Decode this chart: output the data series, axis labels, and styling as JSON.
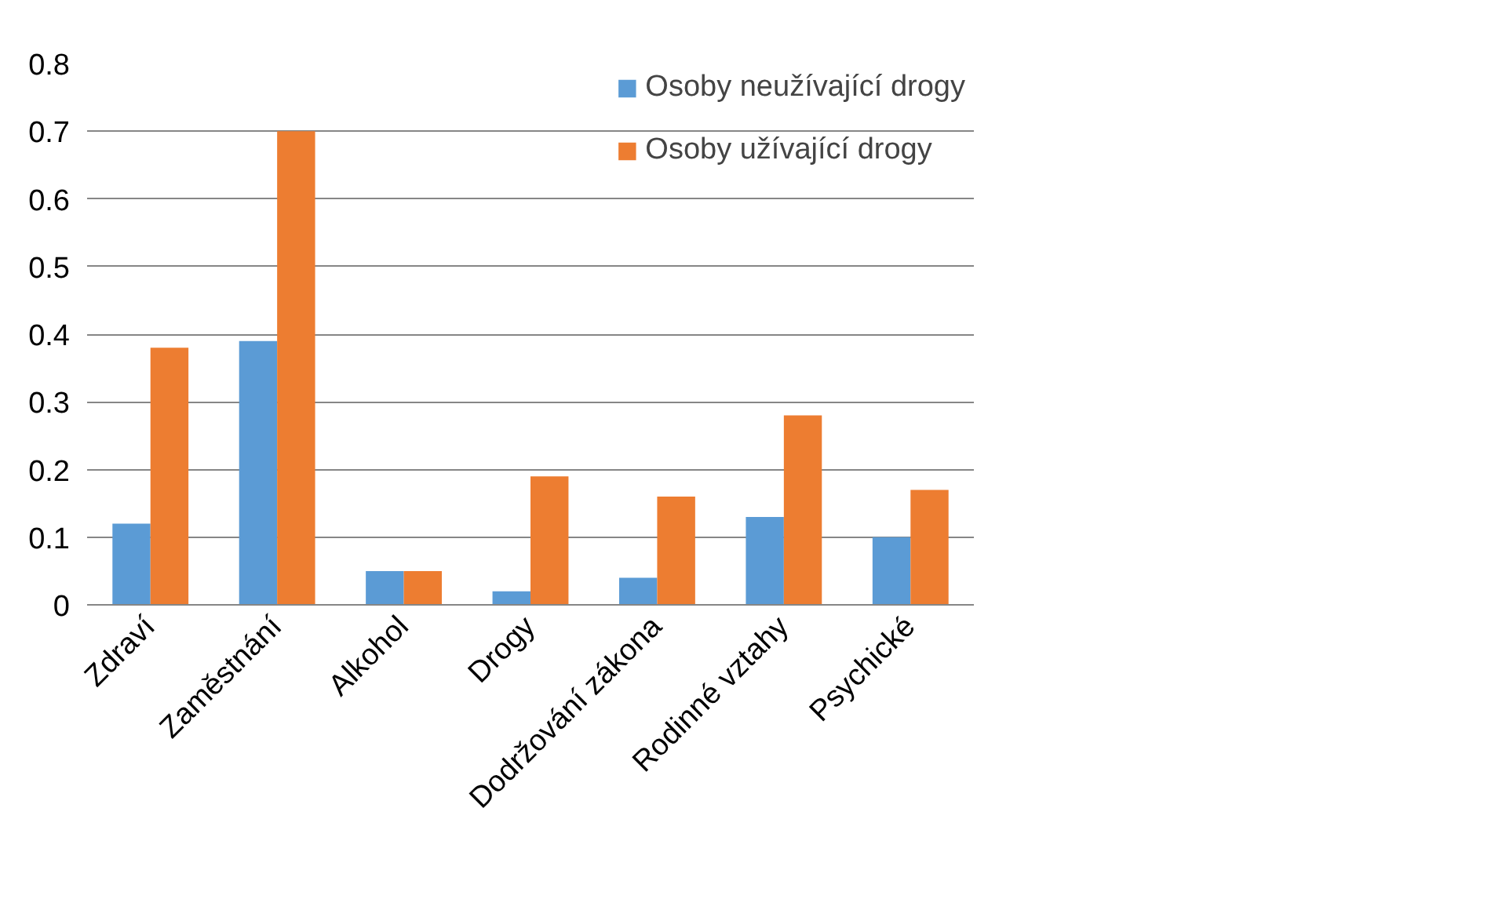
{
  "chart_data": {
    "type": "bar",
    "categories": [
      "Zdraví",
      "Zaměstnání",
      "Alkohol",
      "Drogy",
      "Dodržování zákona",
      "Rodinné vztahy",
      "Psychické"
    ],
    "series": [
      {
        "name": "Osoby neužívající drogy",
        "color": "#5b9bd5",
        "values": [
          0.12,
          0.39,
          0.05,
          0.02,
          0.04,
          0.13,
          0.1
        ]
      },
      {
        "name": "Osoby užívající drogy",
        "color": "#ed7d31",
        "values": [
          0.38,
          0.7,
          0.05,
          0.19,
          0.16,
          0.28,
          0.17
        ]
      }
    ],
    "ylim": [
      0,
      0.8
    ],
    "yticks": [
      0,
      0.1,
      0.2,
      0.3,
      0.4,
      0.5,
      0.6,
      0.7,
      0.8
    ],
    "grid": "y",
    "legend": "top right"
  }
}
